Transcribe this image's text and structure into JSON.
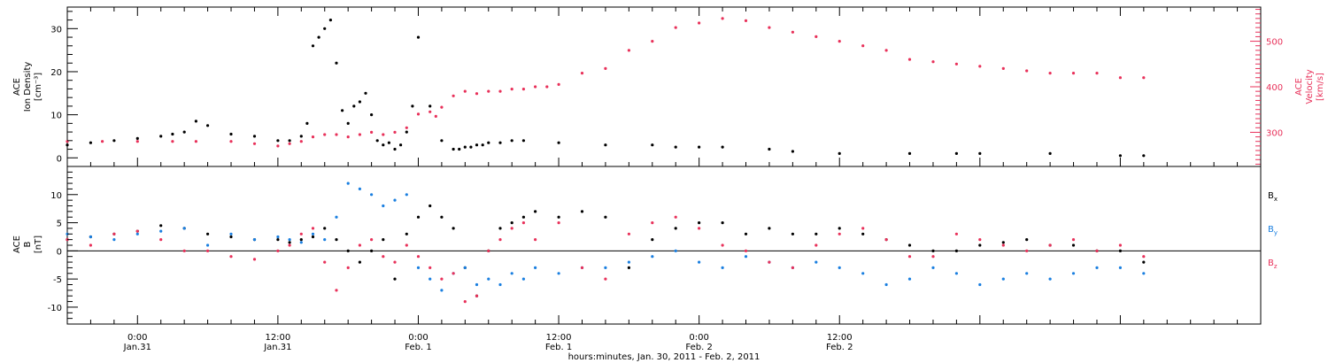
{
  "colors": {
    "black": "#000000",
    "blue": "#1a7fe0",
    "red": "#e8315a"
  },
  "chart_data": [
    {
      "type": "scatter",
      "panel": "plasma",
      "ylabel_lines": [
        "ACE",
        "Ion Density",
        "[cm⁻³]"
      ],
      "ylim": [
        -2,
        35
      ],
      "yticks": [
        0,
        10,
        20,
        30
      ],
      "y2label_lines": [
        "ACE",
        "Velocity",
        "[km/s]"
      ],
      "y2lim": [
        225,
        575
      ],
      "y2ticks": [
        300,
        400,
        500
      ],
      "y2color": "#e8315a",
      "series": [
        {
          "color": "#000000",
          "axis": "left",
          "x": [
            -6,
            -4,
            -2,
            0,
            2,
            3,
            4,
            5,
            6,
            8,
            10,
            12,
            13,
            14,
            14.5,
            15,
            15.5,
            16,
            16.5,
            17,
            17.5,
            18,
            18.5,
            19,
            19.5,
            20,
            20.5,
            21,
            21.5,
            22,
            22.5,
            23,
            23.5,
            24,
            25,
            26,
            27,
            27.5,
            28,
            28.5,
            29,
            29.5,
            30,
            31,
            32,
            33,
            36,
            40,
            44,
            46,
            48,
            50,
            54,
            56,
            60,
            66,
            70,
            72,
            78,
            84,
            86
          ],
          "values": [
            3,
            3.5,
            4,
            4.5,
            5,
            5.5,
            6,
            8.5,
            7.5,
            5.5,
            5,
            4,
            4,
            5,
            8,
            26,
            28,
            30,
            32,
            22,
            11,
            8,
            12,
            13,
            15,
            10,
            4,
            3,
            3.5,
            2,
            3,
            6,
            12,
            28,
            12,
            4,
            2,
            2,
            2.5,
            2.5,
            3,
            3,
            3.5,
            3.5,
            4,
            4,
            3.5,
            3,
            3,
            2.5,
            2.5,
            2.5,
            2,
            1.5,
            1,
            1,
            1,
            1,
            1,
            0.5,
            0.5
          ]
        },
        {
          "color": "#e8315a",
          "axis": "right",
          "x": [
            -6,
            -3,
            0,
            3,
            5,
            8,
            10,
            12,
            13,
            14,
            15,
            16,
            17,
            18,
            19,
            20,
            21,
            22,
            23,
            24,
            25,
            25.5,
            26,
            27,
            28,
            29,
            30,
            31,
            32,
            33,
            34,
            35,
            36,
            38,
            40,
            42,
            44,
            46,
            48,
            50,
            52,
            54,
            56,
            58,
            60,
            62,
            64,
            66,
            68,
            70,
            72,
            74,
            76,
            78,
            80,
            82,
            84,
            86
          ],
          "values": [
            280,
            280,
            280,
            280,
            280,
            280,
            275,
            270,
            275,
            280,
            290,
            295,
            295,
            290,
            295,
            300,
            295,
            300,
            310,
            340,
            345,
            335,
            355,
            380,
            390,
            385,
            390,
            390,
            395,
            395,
            400,
            400,
            405,
            430,
            440,
            480,
            500,
            530,
            540,
            550,
            545,
            530,
            520,
            510,
            500,
            490,
            480,
            460,
            455,
            450,
            445,
            440,
            435,
            430,
            430,
            430,
            420,
            420
          ]
        }
      ]
    },
    {
      "type": "scatter",
      "panel": "magnetic",
      "ylabel_lines": [
        "ACE",
        "B",
        "[nT]"
      ],
      "ylim": [
        -13,
        15
      ],
      "yticks": [
        -10,
        -5,
        0,
        5,
        10
      ],
      "zero_line": true,
      "series": [
        {
          "name": "Bx",
          "color": "#000000",
          "x": [
            -6,
            -4,
            -2,
            0,
            2,
            4,
            6,
            8,
            10,
            12,
            13,
            14,
            15,
            16,
            17,
            18,
            19,
            20,
            21,
            22,
            23,
            24,
            25,
            26,
            27,
            28,
            29,
            30,
            31,
            32,
            33,
            34,
            36,
            38,
            40,
            42,
            44,
            46,
            48,
            50,
            52,
            54,
            56,
            58,
            60,
            62,
            64,
            66,
            68,
            70,
            72,
            74,
            76,
            78,
            80,
            82,
            84,
            86
          ],
          "values": [
            2,
            2.5,
            3,
            3.5,
            4.5,
            4,
            3,
            2.5,
            2,
            2,
            1.5,
            2,
            2.5,
            4,
            2,
            0,
            -2,
            0,
            2,
            -5,
            3,
            6,
            8,
            6,
            4,
            -3,
            -8,
            0,
            4,
            5,
            6,
            7,
            6,
            7,
            6,
            -3,
            2,
            4,
            5,
            5,
            3,
            4,
            3,
            3,
            4,
            3,
            2,
            1,
            0,
            0,
            1,
            1.5,
            2,
            1,
            1,
            0,
            0,
            -2
          ]
        },
        {
          "name": "By",
          "color": "#1a7fe0",
          "x": [
            -6,
            -4,
            -2,
            0,
            2,
            4,
            6,
            8,
            10,
            12,
            13,
            14,
            15,
            16,
            17,
            18,
            19,
            20,
            21,
            22,
            23,
            24,
            25,
            26,
            27,
            28,
            29,
            30,
            31,
            32,
            33,
            34,
            36,
            38,
            40,
            42,
            44,
            46,
            48,
            50,
            52,
            54,
            56,
            58,
            60,
            62,
            64,
            66,
            68,
            70,
            72,
            74,
            76,
            78,
            80,
            82,
            84,
            86
          ],
          "values": [
            3,
            2.5,
            2,
            3,
            3.5,
            4,
            1,
            3,
            2,
            2.5,
            2,
            1.5,
            3,
            2,
            6,
            12,
            11,
            10,
            8,
            9,
            10,
            -3,
            -5,
            -7,
            -4,
            -3,
            -6,
            -5,
            -6,
            -4,
            -5,
            -3,
            -4,
            -3,
            -3,
            -2,
            -1,
            0,
            -2,
            -3,
            -1,
            -2,
            -3,
            -2,
            -3,
            -4,
            -6,
            -5,
            -3,
            -4,
            -6,
            -5,
            -4,
            -5,
            -4,
            -3,
            -3,
            -4
          ]
        },
        {
          "name": "Bz",
          "color": "#e8315a",
          "x": [
            -6,
            -4,
            -2,
            0,
            2,
            4,
            6,
            8,
            10,
            12,
            13,
            14,
            15,
            16,
            17,
            18,
            19,
            20,
            21,
            22,
            23,
            24,
            25,
            26,
            27,
            28,
            29,
            30,
            31,
            32,
            33,
            34,
            36,
            38,
            40,
            42,
            44,
            46,
            48,
            50,
            52,
            54,
            56,
            58,
            60,
            62,
            64,
            66,
            68,
            70,
            72,
            74,
            76,
            78,
            80,
            82,
            84,
            86
          ],
          "values": [
            2,
            1,
            3,
            3.5,
            2,
            0,
            0,
            -1,
            -1.5,
            0,
            1,
            3,
            4,
            -2,
            -7,
            -3,
            1,
            2,
            -1,
            -2,
            1,
            -1,
            -3,
            -5,
            -4,
            -9,
            -8,
            0,
            2,
            4,
            5,
            2,
            5,
            -3,
            -5,
            3,
            5,
            6,
            4,
            1,
            0,
            -2,
            -3,
            1,
            3,
            4,
            2,
            -1,
            -1,
            3,
            2,
            1,
            0,
            1,
            2,
            0,
            1,
            -1
          ]
        }
      ],
      "legend": [
        "B",
        "B",
        "B"
      ],
      "legend_sub": [
        "x",
        "y",
        "z"
      ]
    }
  ],
  "x_axis": {
    "start": "2011-01-30 18:00",
    "range_hours": [
      -6,
      96
    ],
    "tick_labels": [
      {
        "h": 0,
        "time": "0:00",
        "date": "Jan.31"
      },
      {
        "h": 12,
        "time": "12:00",
        "date": "Jan.31"
      },
      {
        "h": 24,
        "time": "0:00",
        "date": "Feb. 1"
      },
      {
        "h": 36,
        "time": "12:00",
        "date": "Feb. 1"
      },
      {
        "h": 48,
        "time": "0:00",
        "date": "Feb. 2"
      },
      {
        "h": 60,
        "time": "12:00",
        "date": "Feb. 2"
      }
    ],
    "title": "hours:minutes, Jan. 30, 2011 - Feb. 2, 2011"
  }
}
